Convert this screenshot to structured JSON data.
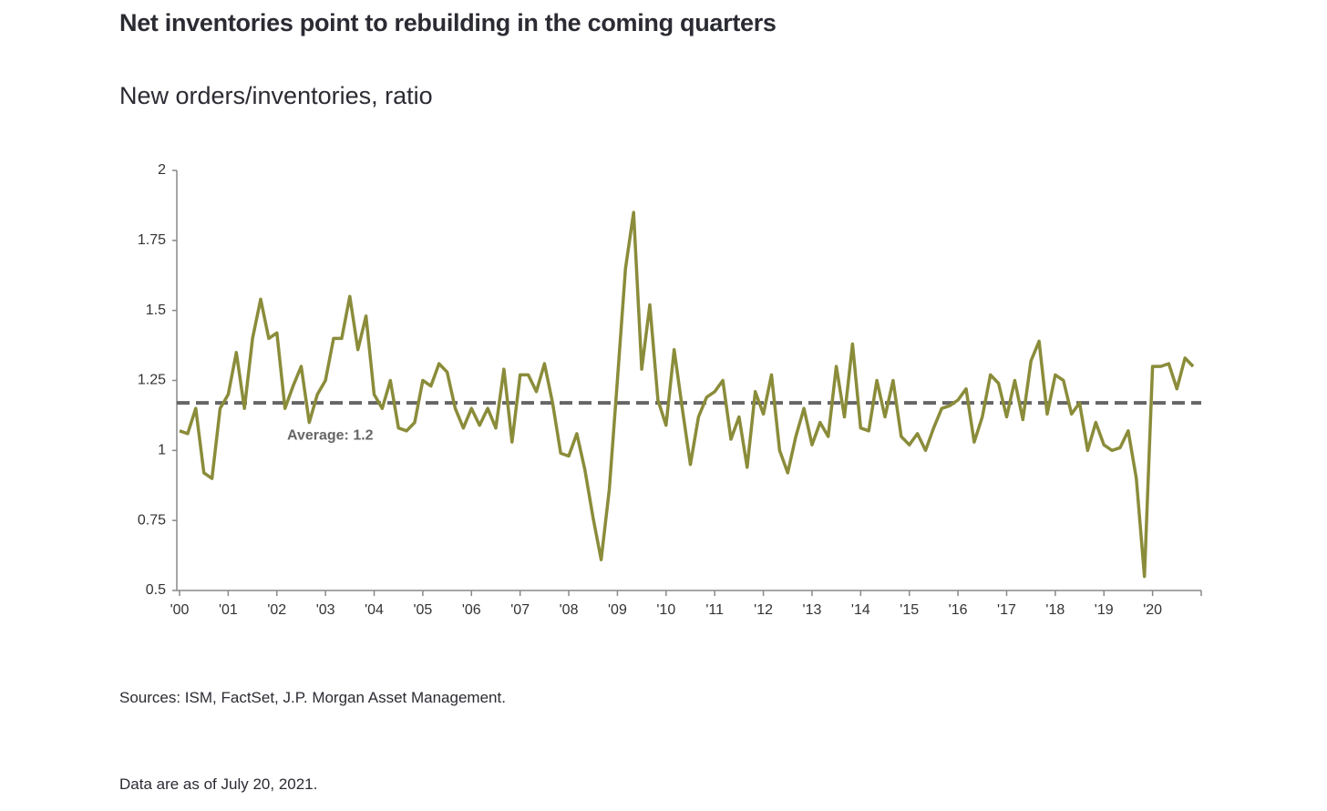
{
  "chart_data": {
    "type": "line",
    "title": "Net inventories point to rebuilding in the coming quarters",
    "subtitle": "New orders/inventories, ratio",
    "source": "Sources: ISM, FactSet, J.P. Morgan Asset Management.",
    "note": "Data are as of July 20, 2021.",
    "color": "#8a8c3a",
    "average": 1.17,
    "average_label": "Average: 1.2",
    "average_color": "#666666",
    "ylim": [
      0.5,
      2
    ],
    "yticks": [
      0.5,
      0.75,
      1,
      1.25,
      1.5,
      1.75,
      2
    ],
    "categories": [
      "'00",
      null,
      null,
      null,
      null,
      null,
      "'01",
      null,
      null,
      null,
      null,
      null,
      "'02",
      null,
      null,
      null,
      null,
      null,
      "'03",
      null,
      null,
      null,
      null,
      null,
      "'04",
      null,
      null,
      null,
      null,
      null,
      "'05",
      null,
      null,
      null,
      null,
      null,
      "'06",
      null,
      null,
      null,
      null,
      null,
      "'07",
      null,
      null,
      null,
      null,
      null,
      "'08",
      null,
      null,
      null,
      null,
      null,
      "'09",
      null,
      null,
      null,
      null,
      null,
      "'10",
      null,
      null,
      null,
      null,
      null,
      "'11",
      null,
      null,
      null,
      null,
      null,
      "'12",
      null,
      null,
      null,
      null,
      null,
      "'13",
      null,
      null,
      null,
      null,
      null,
      "'14",
      null,
      null,
      null,
      null,
      null,
      "'15",
      null,
      null,
      null,
      null,
      null,
      "'16",
      null,
      null,
      null,
      null,
      null,
      "'17",
      null,
      null,
      null,
      null,
      null,
      "'18",
      null,
      null,
      null,
      null,
      null,
      "'19",
      null,
      null,
      null,
      null,
      null,
      "'20",
      null,
      null,
      null,
      null,
      null
    ],
    "values": [
      1.07,
      1.06,
      1.15,
      0.92,
      0.9,
      1.15,
      1.2,
      1.35,
      1.15,
      1.4,
      1.54,
      1.4,
      1.42,
      1.15,
      1.23,
      1.3,
      1.1,
      1.2,
      1.25,
      1.4,
      1.4,
      1.55,
      1.36,
      1.48,
      1.2,
      1.15,
      1.25,
      1.08,
      1.07,
      1.1,
      1.25,
      1.23,
      1.31,
      1.28,
      1.15,
      1.08,
      1.15,
      1.09,
      1.15,
      1.08,
      1.29,
      1.03,
      1.27,
      1.27,
      1.21,
      1.31,
      1.17,
      0.99,
      0.98,
      1.06,
      0.93,
      0.76,
      0.61,
      0.86,
      1.25,
      1.65,
      1.85,
      1.29,
      1.52,
      1.18,
      1.09,
      1.36,
      1.15,
      0.95,
      1.12,
      1.19,
      1.21,
      1.25,
      1.04,
      1.12,
      0.94,
      1.21,
      1.13,
      1.27,
      1.0,
      0.92,
      1.05,
      1.15,
      1.02,
      1.1,
      1.05,
      1.3,
      1.12,
      1.38,
      1.08,
      1.07,
      1.25,
      1.12,
      1.25,
      1.05,
      1.02,
      1.06,
      1.0,
      1.08,
      1.15,
      1.16,
      1.18,
      1.22,
      1.03,
      1.12,
      1.27,
      1.24,
      1.12,
      1.25,
      1.11,
      1.32,
      1.39,
      1.13,
      1.27,
      1.25,
      1.13,
      1.17,
      1.0,
      1.1,
      1.02,
      1.0,
      1.01,
      1.07,
      0.9,
      0.55,
      1.3,
      1.3,
      1.31,
      1.22,
      1.33,
      1.3
    ]
  }
}
